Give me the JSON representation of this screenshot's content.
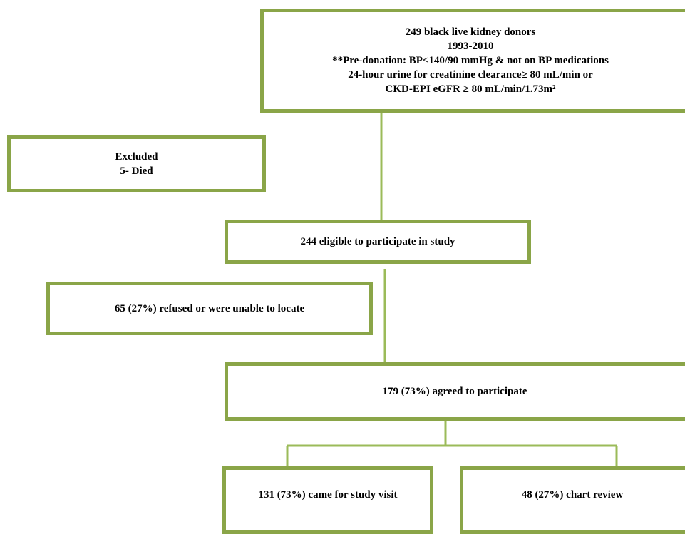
{
  "nodes": [
    {
      "lines": [
        "249 black live kidney donors",
        "1993-2010",
        "**Pre-donation: BP<140/90 mmHg & not on BP medications",
        "24-hour urine for creatinine clearance≥ 80 mL/min or",
        "CKD-EPI eGFR ≥ 80 mL/min/1.73m²"
      ]
    },
    {
      "lines": [
        "Excluded",
        "5- Died"
      ]
    },
    {
      "lines": [
        "244 eligible to participate in study"
      ]
    },
    {
      "lines": [
        "65 (27%) refused or were unable to locate"
      ]
    },
    {
      "lines": [
        "179 (73%) agreed to participate"
      ]
    },
    {
      "lines": [
        "131 (73%) came for study visit"
      ]
    },
    {
      "lines": [
        "48 (27%) chart review"
      ]
    }
  ]
}
